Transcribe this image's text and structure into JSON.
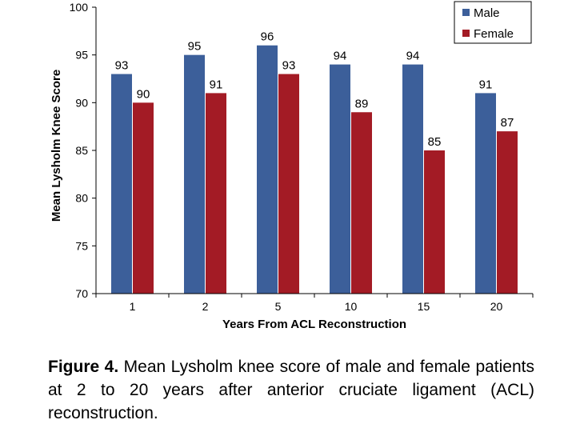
{
  "chart_data": {
    "type": "bar",
    "categories": [
      "1",
      "2",
      "5",
      "10",
      "15",
      "20"
    ],
    "series": [
      {
        "name": "Male",
        "color": "#3c5f9a",
        "values": [
          93,
          95,
          96,
          94,
          94,
          91
        ]
      },
      {
        "name": "Female",
        "color": "#a31b25",
        "values": [
          90,
          91,
          93,
          89,
          85,
          87
        ]
      }
    ],
    "xlabel": "Years From ACL Reconstruction",
    "ylabel": "Mean Lysholm Knee Score",
    "ylim": [
      70,
      100
    ],
    "yticks": [
      70,
      75,
      80,
      85,
      90,
      95,
      100
    ],
    "grid": false,
    "legend_position": "top-right"
  },
  "caption": {
    "label": "Figure 4.",
    "text": " Mean Lysholm knee score of male and female patients at 2 to 20 years after anterior cruciate ligament (ACL) reconstruction."
  }
}
